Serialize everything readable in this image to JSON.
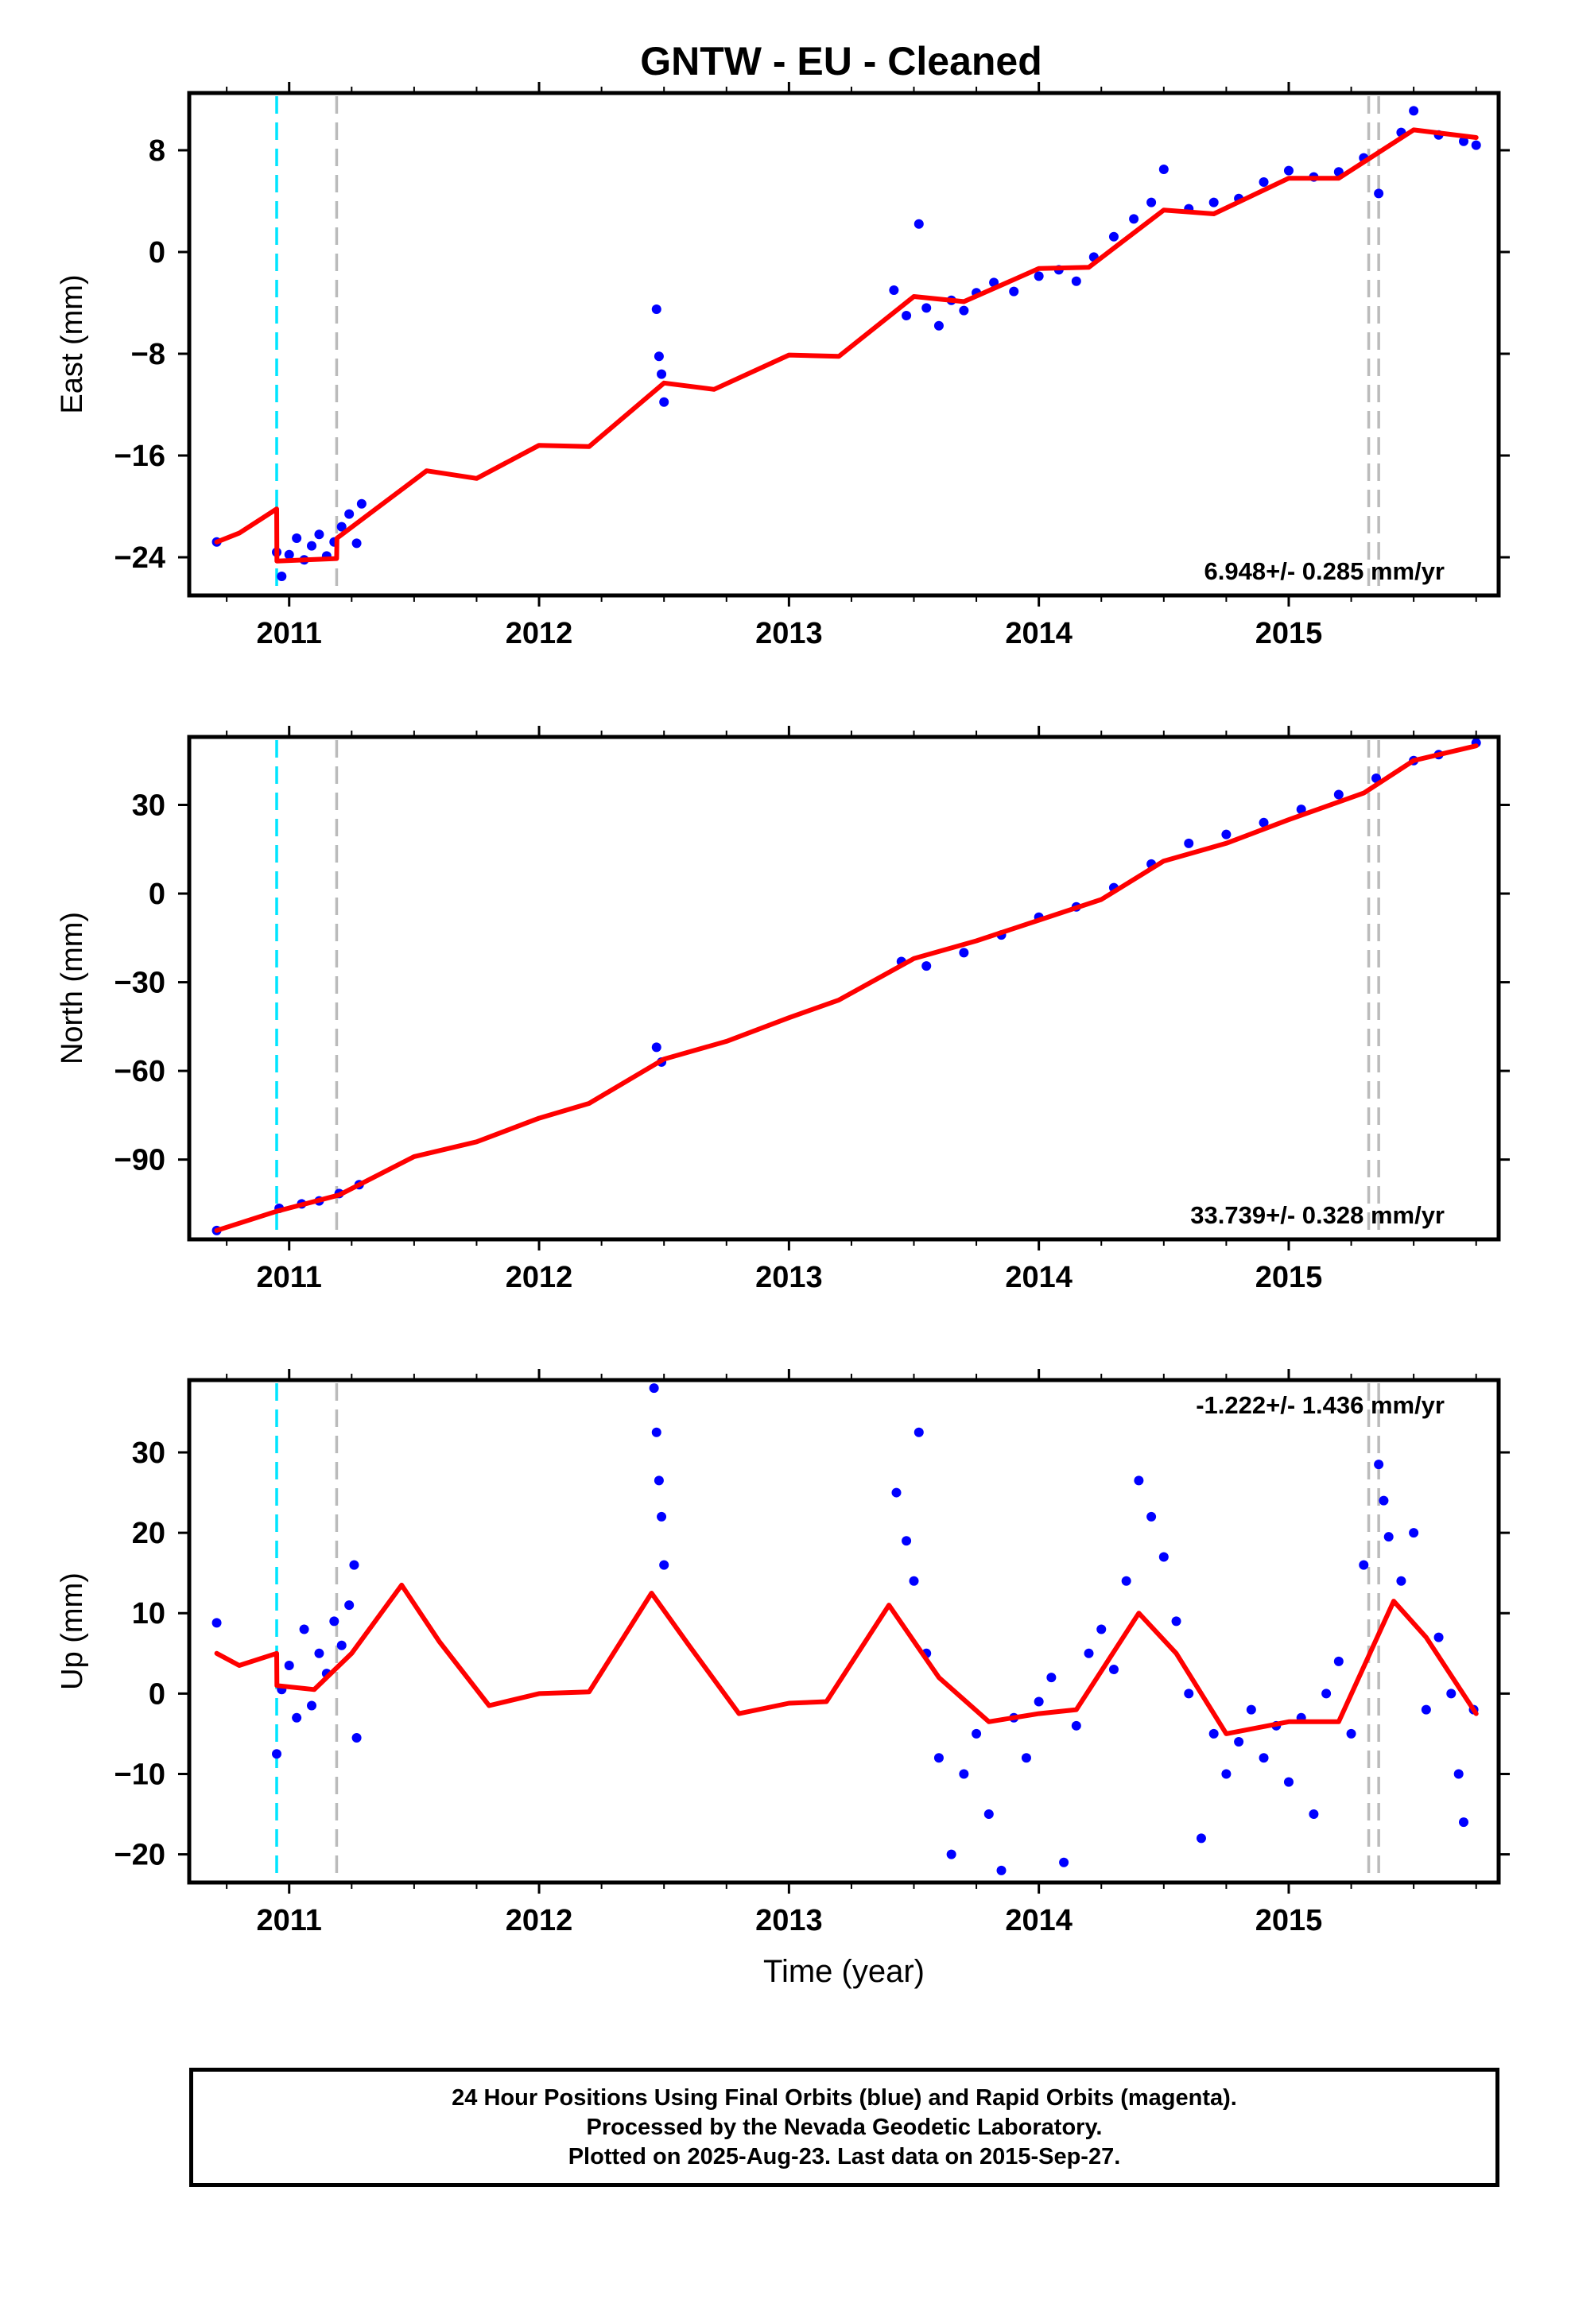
{
  "colors": {
    "final_orbits": "#0000ff",
    "model": "#ff0000",
    "equipment_change": "#00e5ff",
    "other_change": "#bbbbbb",
    "frame": "#000000"
  },
  "caption": {
    "line1": "24 Hour Positions Using Final Orbits (blue) and Rapid Orbits (magenta).",
    "line2": "Processed by the Nevada Geodetic Laboratory.",
    "line3": "Plotted on 2025-Aug-23. Last data on 2015-Sep-27."
  },
  "chart_data": [
    {
      "type": "scatter",
      "title": "GNTW  - EU - Cleaned",
      "ylabel": "East (mm)",
      "xlabel": "",
      "xlim": [
        2010.6,
        2015.84
      ],
      "ylim": [
        -27,
        12.5
      ],
      "xticks": [
        2011,
        2012,
        2013,
        2014,
        2015
      ],
      "yticks": [
        -24,
        -16,
        -8,
        0,
        8
      ],
      "ytick_labels": [
        "−24",
        "−16",
        "−8",
        "0",
        "8"
      ],
      "vertical_lines": [
        {
          "x": 2010.95,
          "kind": "equipment"
        },
        {
          "x": 2011.19,
          "kind": "other"
        },
        {
          "x": 2015.32,
          "kind": "other"
        },
        {
          "x": 2015.36,
          "kind": "other"
        }
      ],
      "rate_label": "6.948+/- 0.285 mm/yr",
      "rate_position": "bottom-right",
      "series": [
        {
          "values": [
            [
              2010.71,
              -22.8
            ],
            [
              2010.95,
              -23.6
            ],
            [
              2010.97,
              -25.5
            ],
            [
              2011.0,
              -23.8
            ],
            [
              2011.03,
              -22.5
            ],
            [
              2011.06,
              -24.2
            ],
            [
              2011.09,
              -23.1
            ],
            [
              2011.12,
              -22.2
            ],
            [
              2011.15,
              -23.9
            ],
            [
              2011.18,
              -22.8
            ],
            [
              2011.21,
              -21.6
            ],
            [
              2011.24,
              -20.6
            ],
            [
              2011.27,
              -22.9
            ],
            [
              2011.29,
              -19.8
            ],
            [
              2012.47,
              -4.5
            ],
            [
              2012.48,
              -8.2
            ],
            [
              2012.49,
              -9.6
            ],
            [
              2012.5,
              -11.8
            ],
            [
              2013.42,
              -3.0
            ],
            [
              2013.47,
              -5.0
            ],
            [
              2013.52,
              2.2
            ],
            [
              2013.55,
              -4.4
            ],
            [
              2013.6,
              -5.8
            ],
            [
              2013.65,
              -3.8
            ],
            [
              2013.7,
              -4.6
            ],
            [
              2013.75,
              -3.2
            ],
            [
              2013.82,
              -2.4
            ],
            [
              2013.9,
              -3.1
            ],
            [
              2014.0,
              -1.9
            ],
            [
              2014.08,
              -1.4
            ],
            [
              2014.15,
              -2.3
            ],
            [
              2014.22,
              -0.4
            ],
            [
              2014.3,
              1.2
            ],
            [
              2014.38,
              2.6
            ],
            [
              2014.45,
              3.9
            ],
            [
              2014.5,
              6.5
            ],
            [
              2014.6,
              3.4
            ],
            [
              2014.7,
              3.9
            ],
            [
              2014.8,
              4.2
            ],
            [
              2014.9,
              5.5
            ],
            [
              2015.0,
              6.4
            ],
            [
              2015.1,
              5.9
            ],
            [
              2015.2,
              6.3
            ],
            [
              2015.3,
              7.4
            ],
            [
              2015.36,
              4.6
            ],
            [
              2015.45,
              9.4
            ],
            [
              2015.5,
              11.1
            ],
            [
              2015.6,
              9.2
            ],
            [
              2015.7,
              8.7
            ],
            [
              2015.75,
              8.4
            ]
          ]
        }
      ],
      "model": [
        [
          2010.71,
          -22.8
        ],
        [
          2010.8,
          -22.1
        ],
        [
          2010.95,
          -20.2
        ],
        [
          2010.951,
          -24.3
        ],
        [
          2011.19,
          -24.1
        ],
        [
          2011.191,
          -22.5
        ],
        [
          2011.55,
          -17.2
        ],
        [
          2011.75,
          -17.8
        ],
        [
          2012.0,
          -15.2
        ],
        [
          2012.2,
          -15.3
        ],
        [
          2012.5,
          -10.3
        ],
        [
          2012.7,
          -10.8
        ],
        [
          2013.0,
          -8.1
        ],
        [
          2013.2,
          -8.2
        ],
        [
          2013.5,
          -3.5
        ],
        [
          2013.7,
          -3.9
        ],
        [
          2014.0,
          -1.3
        ],
        [
          2014.2,
          -1.2
        ],
        [
          2014.5,
          3.3
        ],
        [
          2014.7,
          3.0
        ],
        [
          2015.0,
          5.8
        ],
        [
          2015.2,
          5.8
        ],
        [
          2015.5,
          9.6
        ],
        [
          2015.75,
          9.0
        ]
      ]
    },
    {
      "type": "scatter",
      "title": "",
      "ylabel": "North (mm)",
      "xlabel": "",
      "xlim": [
        2010.6,
        2015.84
      ],
      "ylim": [
        -117,
        53
      ],
      "xticks": [
        2011,
        2012,
        2013,
        2014,
        2015
      ],
      "yticks": [
        -90,
        -60,
        -30,
        0,
        30
      ],
      "ytick_labels": [
        "−90",
        "−60",
        "−30",
        "0",
        "30"
      ],
      "vertical_lines": [
        {
          "x": 2010.95,
          "kind": "equipment"
        },
        {
          "x": 2011.19,
          "kind": "other"
        },
        {
          "x": 2015.32,
          "kind": "other"
        },
        {
          "x": 2015.36,
          "kind": "other"
        }
      ],
      "rate_label": "33.739+/- 0.328 mm/yr",
      "rate_position": "bottom-right",
      "series": [
        {
          "values": [
            [
              2010.71,
              -114.0
            ],
            [
              2010.96,
              -106.5
            ],
            [
              2011.05,
              -105.0
            ],
            [
              2011.12,
              -104.0
            ],
            [
              2011.2,
              -101.5
            ],
            [
              2011.28,
              -98.5
            ],
            [
              2012.47,
              -52.0
            ],
            [
              2012.49,
              -57.0
            ],
            [
              2013.45,
              -23.0
            ],
            [
              2013.55,
              -24.5
            ],
            [
              2013.7,
              -20.0
            ],
            [
              2013.85,
              -14.0
            ],
            [
              2014.0,
              -8.0
            ],
            [
              2014.15,
              -4.5
            ],
            [
              2014.3,
              2.0
            ],
            [
              2014.45,
              10.0
            ],
            [
              2014.6,
              17.0
            ],
            [
              2014.75,
              20.0
            ],
            [
              2014.9,
              24.0
            ],
            [
              2015.05,
              28.5
            ],
            [
              2015.2,
              33.5
            ],
            [
              2015.35,
              39.0
            ],
            [
              2015.5,
              45.0
            ],
            [
              2015.6,
              47.0
            ],
            [
              2015.75,
              51.0
            ]
          ]
        }
      ],
      "model": [
        [
          2010.71,
          -114.0
        ],
        [
          2010.95,
          -107.5
        ],
        [
          2011.2,
          -102.0
        ],
        [
          2011.5,
          -89.0
        ],
        [
          2011.75,
          -84.0
        ],
        [
          2012.0,
          -76.0
        ],
        [
          2012.2,
          -71.0
        ],
        [
          2012.5,
          -56.0
        ],
        [
          2012.75,
          -50.0
        ],
        [
          2013.0,
          -42.0
        ],
        [
          2013.2,
          -36.0
        ],
        [
          2013.5,
          -22.0
        ],
        [
          2013.75,
          -16.0
        ],
        [
          2014.0,
          -9.0
        ],
        [
          2014.25,
          -2.0
        ],
        [
          2014.5,
          11.0
        ],
        [
          2014.75,
          17.0
        ],
        [
          2015.0,
          25.0
        ],
        [
          2015.3,
          34.0
        ],
        [
          2015.5,
          45.0
        ],
        [
          2015.75,
          50.0
        ]
      ]
    },
    {
      "type": "scatter",
      "title": "",
      "ylabel": "Up (mm)",
      "xlabel": "Time (year)",
      "xlim": [
        2010.6,
        2015.84
      ],
      "ylim": [
        -23.5,
        39
      ],
      "xticks": [
        2011,
        2012,
        2013,
        2014,
        2015
      ],
      "yticks": [
        -20,
        -10,
        0,
        10,
        20,
        30
      ],
      "ytick_labels": [
        "−20",
        "−10",
        "0",
        "10",
        "20",
        "30"
      ],
      "vertical_lines": [
        {
          "x": 2010.95,
          "kind": "equipment"
        },
        {
          "x": 2011.19,
          "kind": "other"
        },
        {
          "x": 2015.32,
          "kind": "other"
        },
        {
          "x": 2015.36,
          "kind": "other"
        }
      ],
      "rate_label": "-1.222+/- 1.436 mm/yr",
      "rate_position": "top-right",
      "series": [
        {
          "values": [
            [
              2010.71,
              8.8
            ],
            [
              2010.95,
              -7.5
            ],
            [
              2010.97,
              0.5
            ],
            [
              2011.0,
              3.5
            ],
            [
              2011.03,
              -3.0
            ],
            [
              2011.06,
              8.0
            ],
            [
              2011.09,
              -1.5
            ],
            [
              2011.12,
              5.0
            ],
            [
              2011.15,
              2.5
            ],
            [
              2011.18,
              9.0
            ],
            [
              2011.21,
              6.0
            ],
            [
              2011.24,
              11.0
            ],
            [
              2011.26,
              16.0
            ],
            [
              2011.27,
              -5.5
            ],
            [
              2012.46,
              38.0
            ],
            [
              2012.47,
              32.5
            ],
            [
              2012.48,
              26.5
            ],
            [
              2012.49,
              22.0
            ],
            [
              2012.5,
              16.0
            ],
            [
              2013.43,
              25.0
            ],
            [
              2013.47,
              19.0
            ],
            [
              2013.5,
              14.0
            ],
            [
              2013.52,
              32.5
            ],
            [
              2013.55,
              5.0
            ],
            [
              2013.6,
              -8.0
            ],
            [
              2013.65,
              -20.0
            ],
            [
              2013.7,
              -10.0
            ],
            [
              2013.75,
              -5.0
            ],
            [
              2013.8,
              -15.0
            ],
            [
              2013.85,
              -22.0
            ],
            [
              2013.9,
              -3.0
            ],
            [
              2013.95,
              -8.0
            ],
            [
              2014.0,
              -1.0
            ],
            [
              2014.05,
              2.0
            ],
            [
              2014.1,
              -21.0
            ],
            [
              2014.15,
              -4.0
            ],
            [
              2014.2,
              5.0
            ],
            [
              2014.25,
              8.0
            ],
            [
              2014.3,
              3.0
            ],
            [
              2014.35,
              14.0
            ],
            [
              2014.4,
              26.5
            ],
            [
              2014.45,
              22.0
            ],
            [
              2014.5,
              17.0
            ],
            [
              2014.55,
              9.0
            ],
            [
              2014.6,
              0.0
            ],
            [
              2014.65,
              -18.0
            ],
            [
              2014.7,
              -5.0
            ],
            [
              2014.75,
              -10.0
            ],
            [
              2014.8,
              -6.0
            ],
            [
              2014.85,
              -2.0
            ],
            [
              2014.9,
              -8.0
            ],
            [
              2014.95,
              -4.0
            ],
            [
              2015.0,
              -11.0
            ],
            [
              2015.05,
              -3.0
            ],
            [
              2015.1,
              -15.0
            ],
            [
              2015.15,
              0.0
            ],
            [
              2015.2,
              4.0
            ],
            [
              2015.25,
              -5.0
            ],
            [
              2015.3,
              16.0
            ],
            [
              2015.36,
              28.5
            ],
            [
              2015.38,
              24.0
            ],
            [
              2015.4,
              19.5
            ],
            [
              2015.45,
              14.0
            ],
            [
              2015.5,
              20.0
            ],
            [
              2015.55,
              -2.0
            ],
            [
              2015.6,
              7.0
            ],
            [
              2015.65,
              0.0
            ],
            [
              2015.68,
              -10.0
            ],
            [
              2015.7,
              -16.0
            ],
            [
              2015.74,
              -2.0
            ]
          ]
        }
      ],
      "model": [
        [
          2010.71,
          5.0
        ],
        [
          2010.8,
          3.5
        ],
        [
          2010.95,
          5.0
        ],
        [
          2010.951,
          1.0
        ],
        [
          2011.1,
          0.5
        ],
        [
          2011.25,
          5.0
        ],
        [
          2011.45,
          13.5
        ],
        [
          2011.6,
          6.5
        ],
        [
          2011.8,
          -1.5
        ],
        [
          2012.0,
          0.0
        ],
        [
          2012.2,
          0.2
        ],
        [
          2012.45,
          12.5
        ],
        [
          2012.6,
          6.0
        ],
        [
          2012.8,
          -2.5
        ],
        [
          2013.0,
          -1.2
        ],
        [
          2013.15,
          -1.0
        ],
        [
          2013.4,
          11.0
        ],
        [
          2013.6,
          2.0
        ],
        [
          2013.8,
          -3.5
        ],
        [
          2014.0,
          -2.5
        ],
        [
          2014.15,
          -2.0
        ],
        [
          2014.4,
          10.0
        ],
        [
          2014.55,
          5.0
        ],
        [
          2014.75,
          -5.0
        ],
        [
          2015.0,
          -3.5
        ],
        [
          2015.2,
          -3.5
        ],
        [
          2015.42,
          11.5
        ],
        [
          2015.55,
          7.0
        ],
        [
          2015.75,
          -2.5
        ]
      ]
    }
  ]
}
